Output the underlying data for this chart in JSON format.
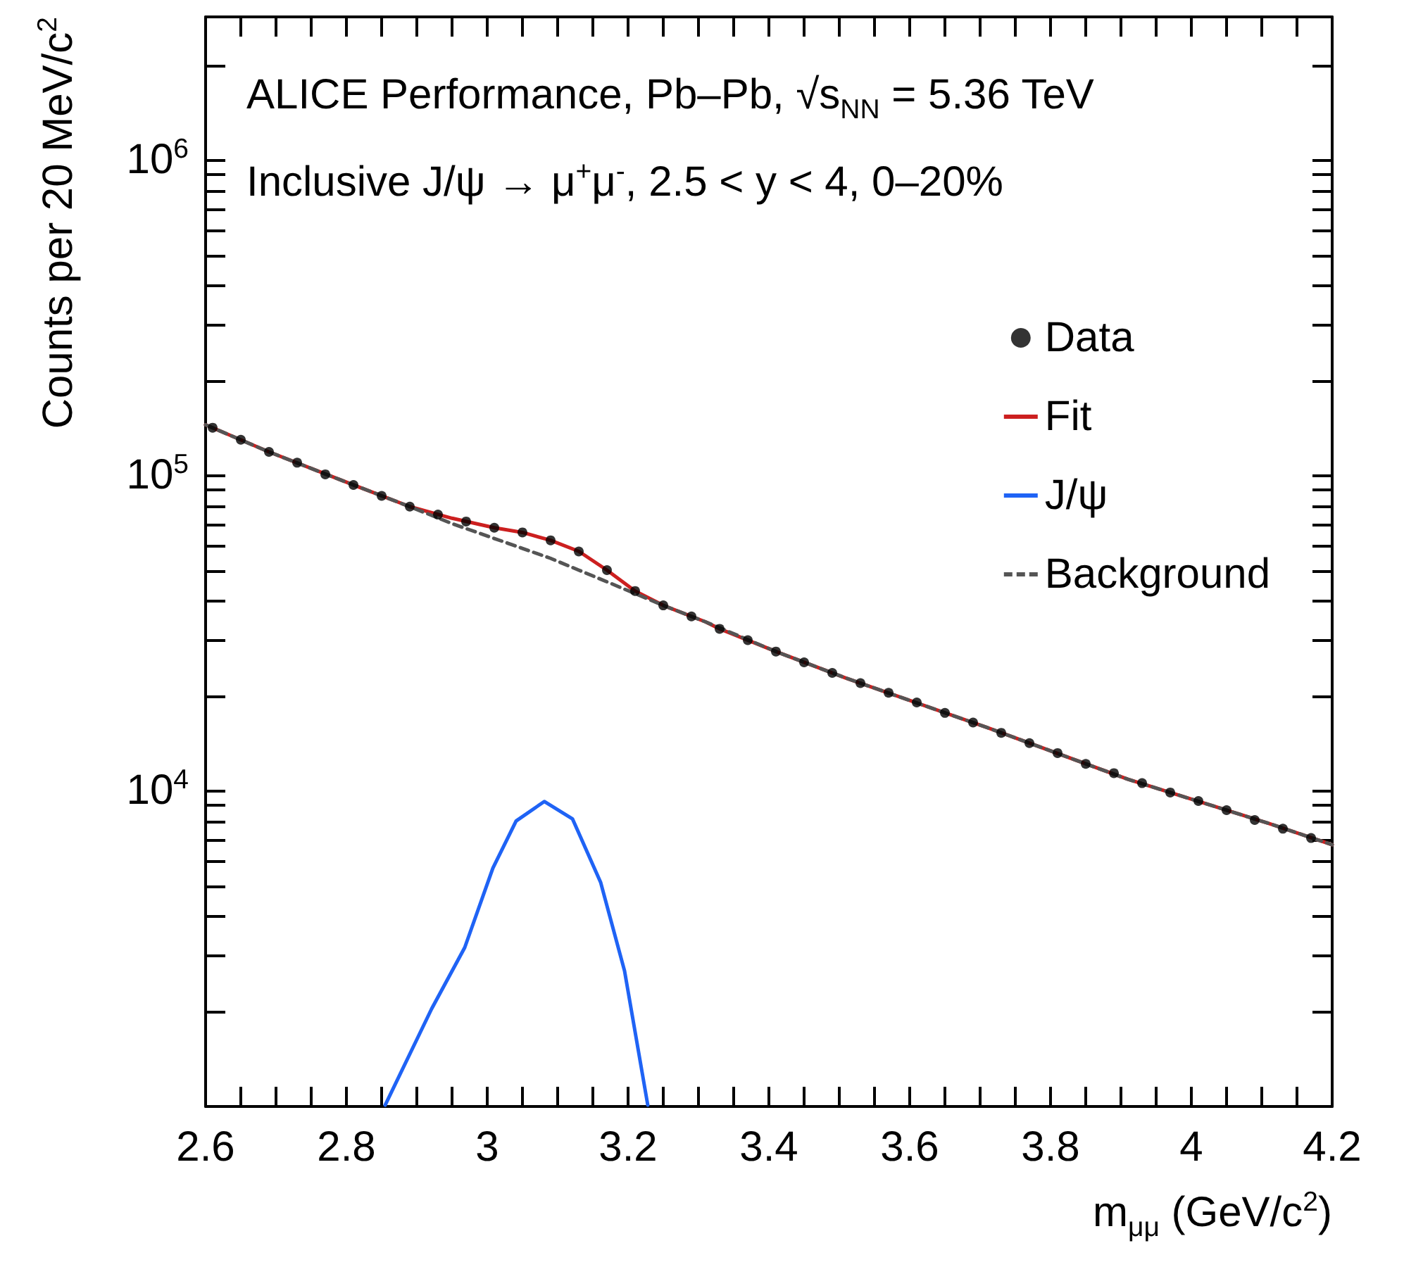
{
  "chart_data": {
    "type": "line",
    "xlabel": "m$_{μμ}$ (GeV/c$^{2}$)",
    "ylabel": "Counts per 20 MeV/c$^{2}$",
    "annotations": [
      "ALICE Performance, Pb–Pb, √s$_{NN}$ = 5.36 TeV",
      "Inclusive J/ψ → μ$^{+}$μ$^{-}$, 2.5 < y < 4, 0–20%"
    ],
    "xlim": [
      2.6,
      4.2
    ],
    "xticks": [
      2.6,
      2.8,
      3,
      3.2,
      3.4,
      3.6,
      3.8,
      4,
      4.2
    ],
    "ylim": [
      1000,
      2850000
    ],
    "yticks": [
      {
        "value": 10000,
        "label": "10$^{4}$"
      },
      {
        "value": 100000,
        "label": "10$^{5}$"
      },
      {
        "value": 1000000,
        "label": "10$^{6}$"
      }
    ],
    "log": "y",
    "grid": false,
    "legend": "right",
    "series": [
      {
        "name": "Data",
        "type": "scatter",
        "marker": "circle",
        "color": "#000000",
        "x": [
          2.61,
          2.65,
          2.69,
          2.73,
          2.77,
          2.81,
          2.85,
          2.89,
          2.93,
          2.97,
          3.01,
          3.05,
          3.09,
          3.13,
          3.17,
          3.21,
          3.25,
          3.29,
          3.33,
          3.37,
          3.41,
          3.45,
          3.49,
          3.53,
          3.57,
          3.61,
          3.65,
          3.69,
          3.73,
          3.77,
          3.81,
          3.85,
          3.89,
          3.93,
          3.97,
          4.01,
          4.05,
          4.09,
          4.13,
          4.17
        ],
        "values": [
          142000,
          130000,
          119000,
          110000,
          101000,
          93500,
          86300,
          79800,
          75300,
          71600,
          68400,
          66100,
          62400,
          57500,
          50200,
          43100,
          38800,
          35800,
          32700,
          30100,
          27700,
          25600,
          23700,
          22000,
          20500,
          19100,
          17700,
          16500,
          15300,
          14200,
          13200,
          12200,
          11400,
          10600,
          9900,
          9300,
          8700,
          8100,
          7600,
          7100
        ]
      },
      {
        "name": "Fit",
        "type": "line",
        "marker": "none",
        "line_style": "solid",
        "color": "#cc1f1f",
        "x": [
          2.6,
          2.69,
          2.79,
          2.89,
          2.95,
          3.01,
          3.05,
          3.09,
          3.13,
          3.17,
          3.21,
          3.25,
          3.31,
          3.33,
          3.41,
          3.51,
          3.71,
          3.91,
          4.11,
          4.2
        ],
        "values": [
          145000,
          119000,
          97300,
          79800,
          73300,
          68400,
          66100,
          62400,
          57600,
          50200,
          43100,
          38800,
          34400,
          32700,
          27700,
          22800,
          15900,
          10900,
          7900,
          6760
        ]
      },
      {
        "name": "J/ψ",
        "type": "line",
        "marker": "none",
        "line_style": "solid",
        "color": "#1f63f5",
        "x": [
          2.855,
          2.921,
          2.968,
          3.008,
          3.041,
          3.081,
          3.121,
          3.161,
          3.195,
          3.228
        ],
        "values": [
          1010,
          2040,
          3190,
          5700,
          8040,
          9270,
          8170,
          5140,
          2690,
          1010
        ]
      },
      {
        "name": "Background",
        "type": "line",
        "marker": "none",
        "line_style": "dashed",
        "color": "#555555",
        "x": [
          2.6,
          2.69,
          2.79,
          2.89,
          2.95,
          3.03,
          3.09,
          3.13,
          3.17,
          3.21,
          3.25,
          3.31,
          3.41,
          3.51,
          3.71,
          3.91,
          4.11,
          4.2
        ],
        "values": [
          145000,
          119000,
          97300,
          79800,
          70500,
          61000,
          54700,
          50200,
          46100,
          42300,
          38800,
          34400,
          27700,
          22800,
          15900,
          10900,
          7900,
          6760
        ]
      }
    ]
  }
}
